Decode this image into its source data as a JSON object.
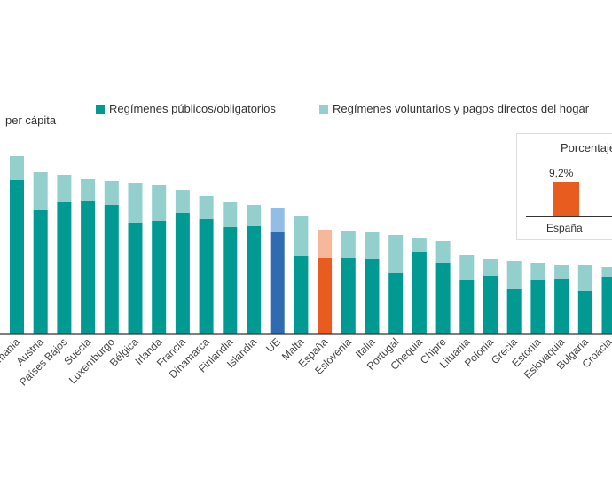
{
  "chart_data": {
    "type": "bar",
    "stacked": true,
    "title": "per cápita",
    "legend_position": "top",
    "grid": false,
    "categories": [
      "Alemania",
      "Austria",
      "Países Bajos",
      "Suecia",
      "Luxemburgo",
      "Bélgica",
      "Irlanda",
      "Francia",
      "Dinamarca",
      "Finlandia",
      "Islandia",
      "UE",
      "Malta",
      "España",
      "Eslovenia",
      "Italia",
      "Portugal",
      "Chequia",
      "Chipre",
      "Lituania",
      "Polonia",
      "Grecia",
      "Estonia",
      "Eslovaquia",
      "Bulgaria",
      "Croacia"
    ],
    "series": [
      {
        "name": "Regímenes públicos/obligatorios",
        "color": "#009a93",
        "values": [
          173,
          139,
          148,
          149,
          145,
          125,
          127,
          136,
          129,
          120,
          121,
          114,
          87,
          85,
          85,
          84,
          68,
          92,
          80,
          60,
          65,
          50,
          60,
          61,
          48,
          64
        ]
      },
      {
        "name": "Regímenes voluntarios y pagos directos del hogar",
        "color": "#93cfcc",
        "values": [
          27,
          43,
          31,
          25,
          27,
          45,
          40,
          26,
          26,
          28,
          24,
          28,
          46,
          32,
          31,
          30,
          43,
          16,
          24,
          29,
          19,
          32,
          20,
          16,
          29,
          11
        ]
      }
    ],
    "highlights": {
      "UE": {
        "public_color": "#2e6bb0",
        "private_color": "#92bde6"
      },
      "España": {
        "public_color": "#e85c1f",
        "private_color": "#f6b79b"
      }
    },
    "ylim": [
      0,
      210
    ]
  },
  "inset": {
    "title": "Porcentaje",
    "category": "España",
    "value_label": "9,2%",
    "value": 9.2,
    "color": "#e85c1f"
  }
}
